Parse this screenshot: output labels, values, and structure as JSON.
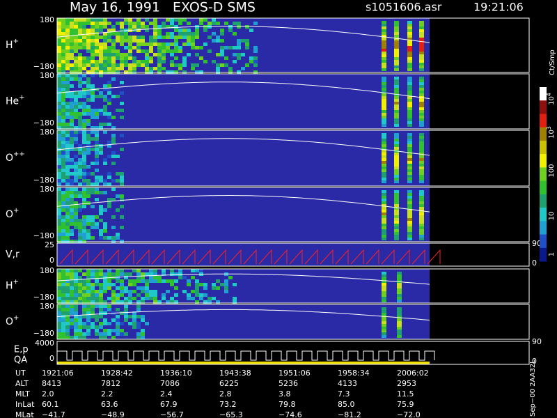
{
  "header": {
    "title": "May 16, 1991   EXOS-D SMS",
    "file": "s1051606.asr",
    "time": "19:21:06"
  },
  "panels": [
    {
      "label": "H",
      "sup": "+",
      "ticks": [
        "180",
        "−180"
      ]
    },
    {
      "label": "He",
      "sup": "+",
      "ticks": [
        "180",
        "−180"
      ]
    },
    {
      "label": "O",
      "sup": "++",
      "ticks": [
        "180",
        "−180"
      ]
    },
    {
      "label": "O",
      "sup": "+",
      "ticks": [
        "180",
        "−180"
      ]
    },
    {
      "label": "V,r",
      "ticks": [
        "25",
        "0"
      ],
      "right_ticks": [
        "90",
        "0"
      ]
    },
    {
      "label": "H",
      "sup": "+",
      "ticks": [
        "180",
        "−180"
      ]
    },
    {
      "label": "O",
      "sup": "+",
      "ticks": [
        "180",
        "−180"
      ]
    },
    {
      "label": "E,p",
      "label2": "QA",
      "ticks": [
        "4000",
        "0"
      ],
      "right_ticks": [
        "90",
        "0"
      ]
    }
  ],
  "colorbar": {
    "title": "Ct/Smp",
    "ticks": [
      {
        "base": "10",
        "sup": "4"
      },
      {
        "base": "10",
        "sup": "3"
      },
      {
        "base": "100"
      },
      {
        "base": "10"
      },
      {
        "base": "1"
      }
    ]
  },
  "ephemeris": {
    "rows": [
      [
        "UT",
        "1921:06",
        "1928:42",
        "1936:10",
        "1943:38",
        "1951:06",
        "1958:34",
        "2006:02"
      ],
      [
        "ALT",
        "8413",
        "7812",
        "7086",
        "6225",
        "5236",
        "4133",
        "2953"
      ],
      [
        "MLT",
        "2.0",
        "2.2",
        "2.4",
        "2.8",
        "3.8",
        "7.3",
        "11.5"
      ],
      [
        "InLat",
        "60.1",
        "63.6",
        "67.9",
        "73.2",
        "79.8",
        "85.0",
        "75.9"
      ],
      [
        "MLat",
        "−41.7",
        "−48.9",
        "−56.7",
        "−65.3",
        "−74.6",
        "−81.2",
        "−72.0"
      ]
    ]
  },
  "footer": "Sep−00 2AA32L"
}
